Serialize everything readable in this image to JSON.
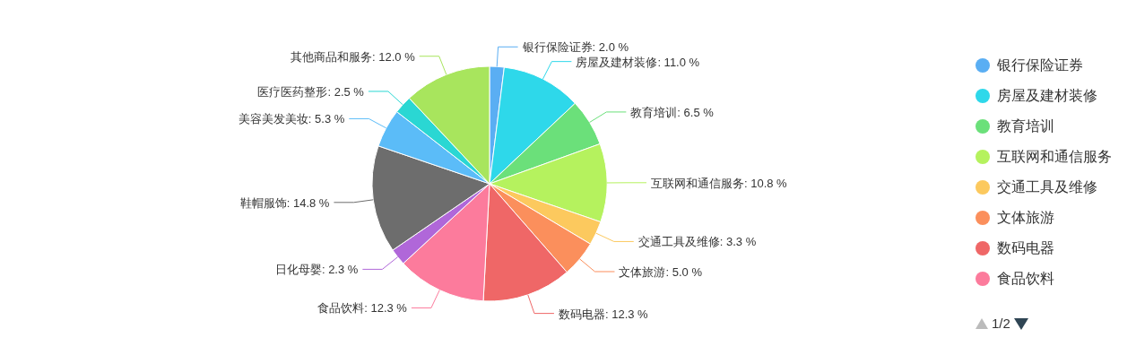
{
  "chart_data": {
    "type": "pie",
    "categories": [
      "银行保险证券",
      "房屋及建材装修",
      "教育培训",
      "互联网和通信服务",
      "交通工具及维修",
      "文体旅游",
      "数码电器",
      "食品饮料",
      "日化母婴",
      "鞋帽服饰",
      "美容美发美妆",
      "医疗医药整形",
      "其他商品和服务"
    ],
    "values": [
      2.0,
      11.0,
      6.5,
      10.8,
      3.3,
      5.0,
      12.3,
      12.3,
      2.3,
      14.8,
      5.3,
      2.5,
      12.0
    ],
    "value_labels": [
      ": 2.0 %",
      ": 11.0 %",
      ": 6.5 %",
      ": 10.8 %",
      ": 3.3 %",
      ": 5.0 %",
      ": 12.3 %",
      ": 12.3 %",
      ": 2.3 %",
      ": 14.8 %",
      ": 5.3 %",
      ": 2.5 %",
      ": 12.0 %"
    ],
    "annotations": [
      "1/2"
    ],
    "colors": [
      "#5aaef3",
      "#2ed8ea",
      "#6be07a",
      "#b5f25e",
      "#fcc95e",
      "#fb8f5c",
      "#ef6767",
      "#fc7b9c",
      "#b067d9",
      "#6d6d6d",
      "#5bbcf8",
      "#2ad7d3",
      "#a8e55d"
    ],
    "legend": "right"
  }
}
